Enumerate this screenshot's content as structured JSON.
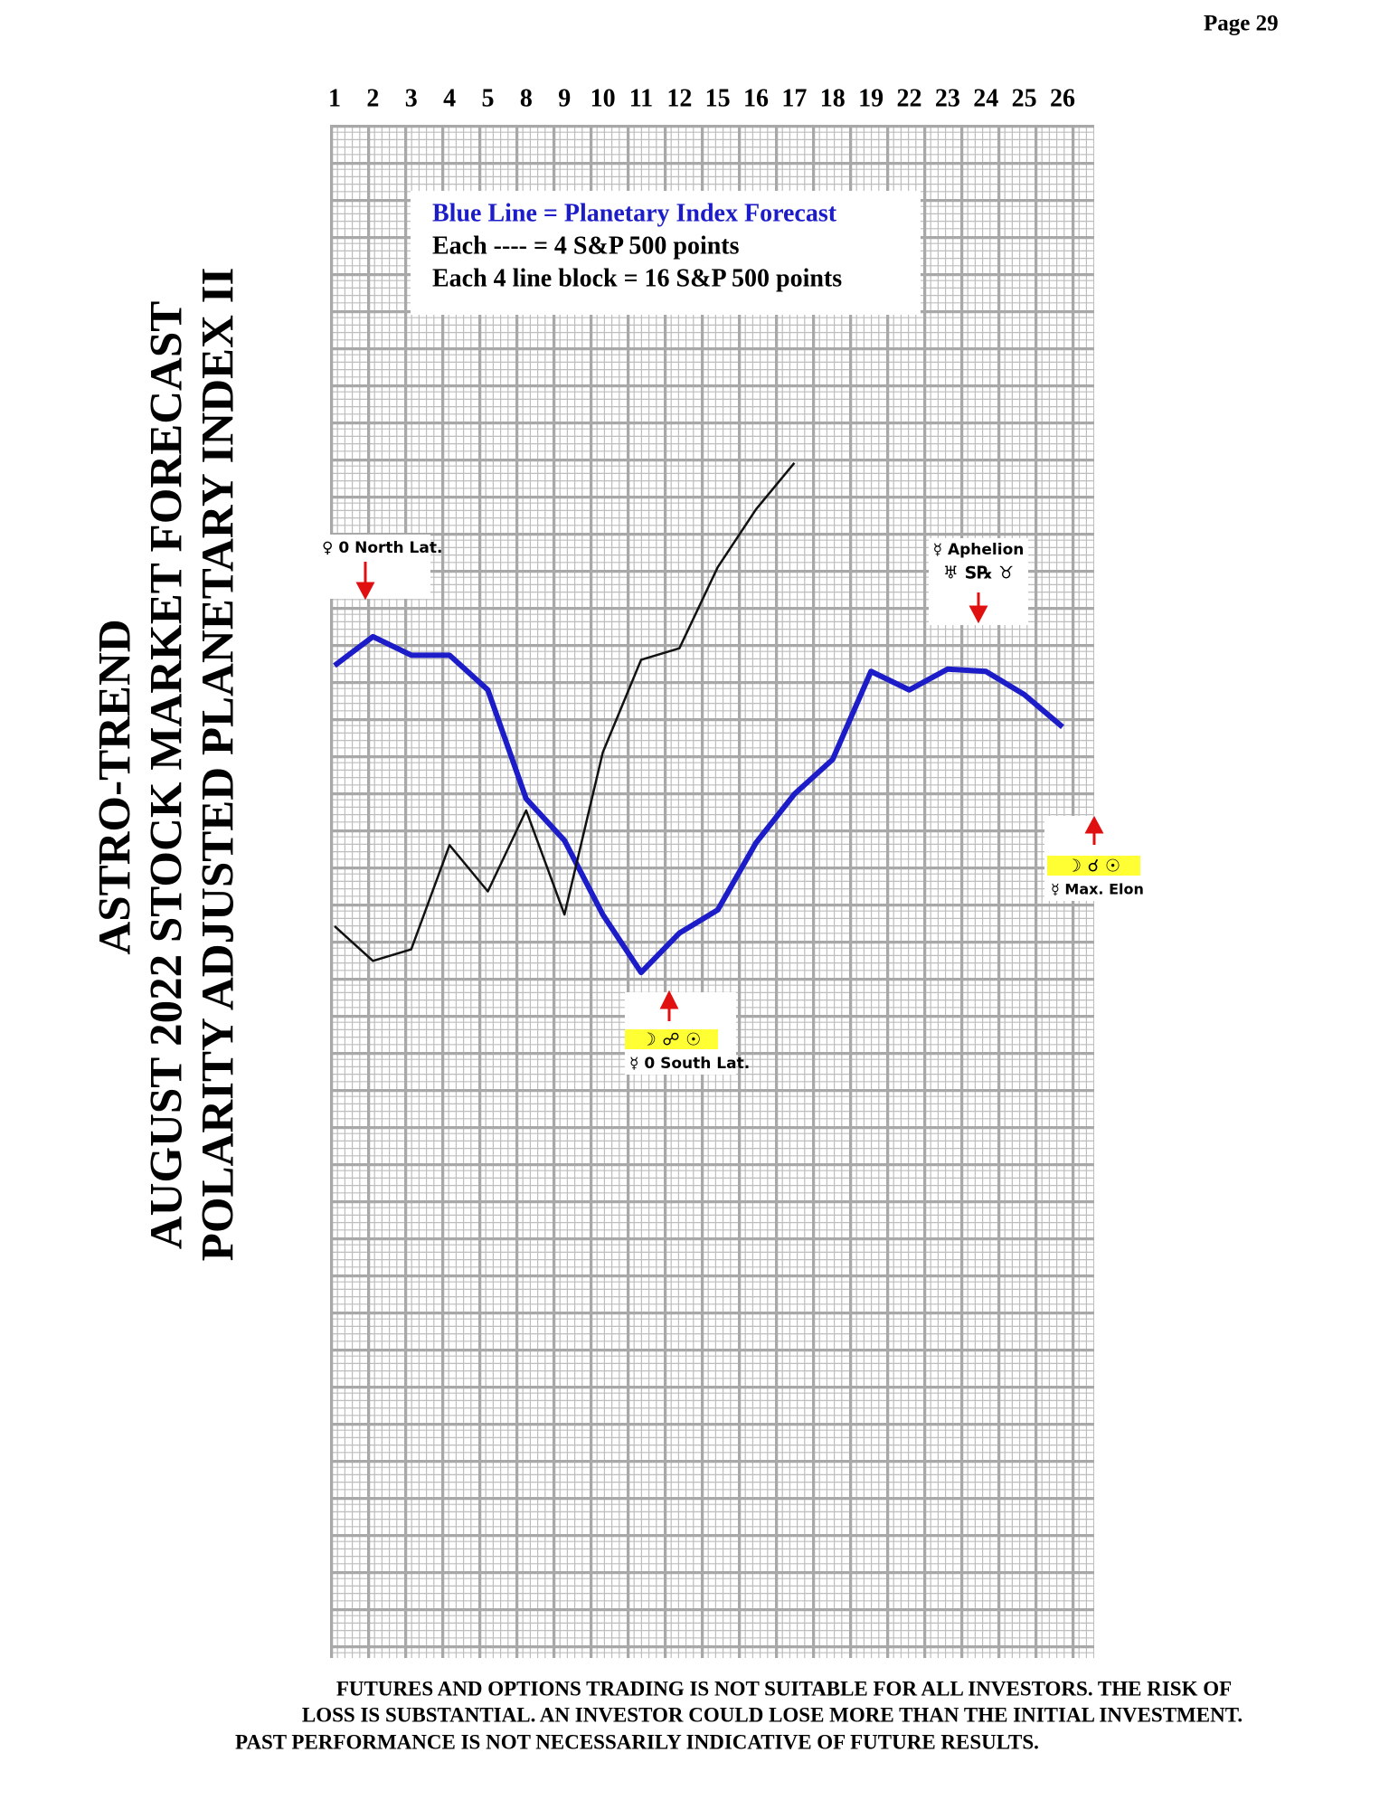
{
  "page": "Page  29",
  "chart_data": {
    "type": "line",
    "title_lines": [
      "ASTRO-TREND",
      "AUGUST 2022  STOCK MARKET FORECAST",
      "POLARITY ADJUSTED PLANETARY INDEX II"
    ],
    "legend_lines": [
      "Blue Line = Planetary Index Forecast",
      "Each ---- =   4 S&P 500 points",
      "Each 4 line block =  16  S&P 500 points"
    ],
    "categories": [
      "1",
      "2",
      "3",
      "4",
      "5",
      "8",
      "9",
      "10",
      "11",
      "12",
      "15",
      "16",
      "17",
      "18",
      "19",
      "22",
      "23",
      "24",
      "25",
      "26"
    ],
    "ylim": [
      0,
      662
    ],
    "series": [
      {
        "color": "#1c1cc8",
        "values": [
          428.5,
          441,
          433,
          433,
          418,
          371,
          353,
          321,
          296,
          313,
          323,
          352,
          373,
          388,
          426,
          418,
          427,
          426,
          416,
          402
        ]
      },
      {
        "color": "#111111",
        "values": [
          316,
          301,
          306,
          351,
          331,
          366,
          321,
          391,
          431,
          436,
          471,
          496,
          516,
          null,
          null,
          null,
          null,
          null,
          null,
          null
        ]
      }
    ],
    "annotations": {
      "north": {
        "text": "♀ 0 North Lat."
      },
      "aphelion": {
        "text": "☿ Aphelion",
        "symbols": "♅ S℞ ♉"
      },
      "south": {
        "symbols": "☽ ☍ ☉",
        "text": "☿ 0 South Lat."
      },
      "elon": {
        "symbols": "☽ ☌ ☉",
        "text": "☿ Max. Elon"
      }
    }
  },
  "disclaimer": [
    "FUTURES AND OPTIONS TRADING IS NOT SUITABLE FOR ALL INVESTORS.  THE RISK OF",
    "LOSS IS SUBSTANTIAL.  AN INVESTOR COULD LOSE MORE THAN THE INITIAL INVESTMENT.",
    "PAST PERFORMANCE IS NOT NECESSARILY INDICATIVE OF FUTURE RESULTS."
  ]
}
